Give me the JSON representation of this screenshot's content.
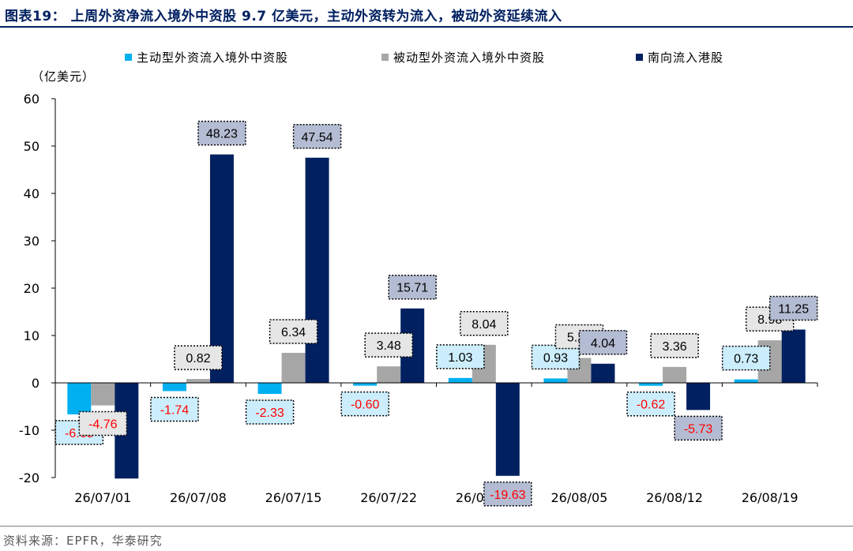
{
  "figure": {
    "title": "图表19：  上周外资净流入境外中资股 9.7 亿美元，主动外资转为流入，被动外资延续流入",
    "unit": "（亿美元）",
    "source": "资料来源：EPFR，华泰研究"
  },
  "chart_data": {
    "type": "bar",
    "categories": [
      "26/07/01",
      "26/07/08",
      "26/07/15",
      "26/07/22",
      "26/07/29",
      "26/08/05",
      "26/08/12",
      "26/08/19"
    ],
    "series": [
      {
        "name": "主动型外资流入境外中资股",
        "color": "#00B0F0",
        "values": [
          -6.65,
          -1.74,
          -2.33,
          -0.6,
          1.03,
          0.93,
          -0.62,
          0.73
        ]
      },
      {
        "name": "被动型外资流入境外中资股",
        "color": "#A6A6A6",
        "values": [
          -4.76,
          0.82,
          6.34,
          3.48,
          8.04,
          5.26,
          3.36,
          8.98
        ]
      },
      {
        "name": "南向流入港股",
        "color": "#002060",
        "values": [
          -20.2,
          48.23,
          47.54,
          15.71,
          -19.63,
          4.04,
          -5.73,
          11.25
        ]
      }
    ],
    "data_labels": [
      [
        "-6.65",
        "-1.74",
        "-2.33",
        "-0.60",
        "1.03",
        "0.93",
        "-0.62",
        "0.73"
      ],
      [
        "-4.76",
        "0.82",
        "6.34",
        "3.48",
        "8.04",
        "5.26",
        "3.36",
        "8.98"
      ],
      [
        "",
        "48.23",
        "47.54",
        "15.71",
        "-19.63",
        "4.04",
        "-5.73",
        "11.25"
      ]
    ],
    "ylim": [
      -20,
      60
    ],
    "yticks": [
      -20,
      -10,
      0,
      10,
      20,
      30,
      40,
      50,
      60
    ],
    "xlabel": "",
    "ylabel": "",
    "grid": false,
    "legend_position": "top",
    "label_box_colors": [
      "#CCEEFC",
      "#E6E6E6",
      "#B4BCD3"
    ],
    "negative_label_color": "#FF0000"
  }
}
